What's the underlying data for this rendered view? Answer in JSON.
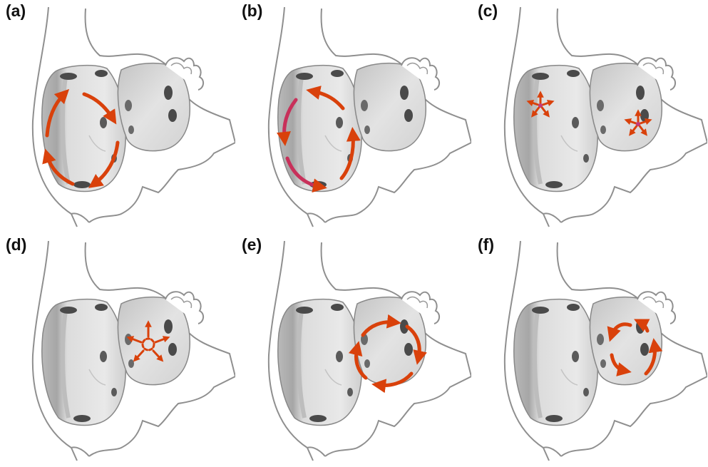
{
  "colors": {
    "arrow": "#d9410b",
    "arrow_alt": "#c8305a",
    "center_dot": "#c43a7a",
    "outline": "#8f8f8f",
    "body_fill": "#ffffff",
    "shell_light": "#e6e6e6",
    "shell_mid": "#cfcfcf",
    "shell_dark": "#a9a9a9",
    "hole": "#4a4a4a"
  },
  "panels": [
    {
      "label": "(a)",
      "motion": "rotation-large-clockwise"
    },
    {
      "label": "(b)",
      "motion": "rotation-large-counterclockwise"
    },
    {
      "label": "(c)",
      "motion": "radial-expansion-both"
    },
    {
      "label": "(d)",
      "motion": "radial-expansion-small"
    },
    {
      "label": "(e)",
      "motion": "rotation-small-clockwise"
    },
    {
      "label": "(f)",
      "motion": "rotation-small-counterclockwise"
    }
  ]
}
